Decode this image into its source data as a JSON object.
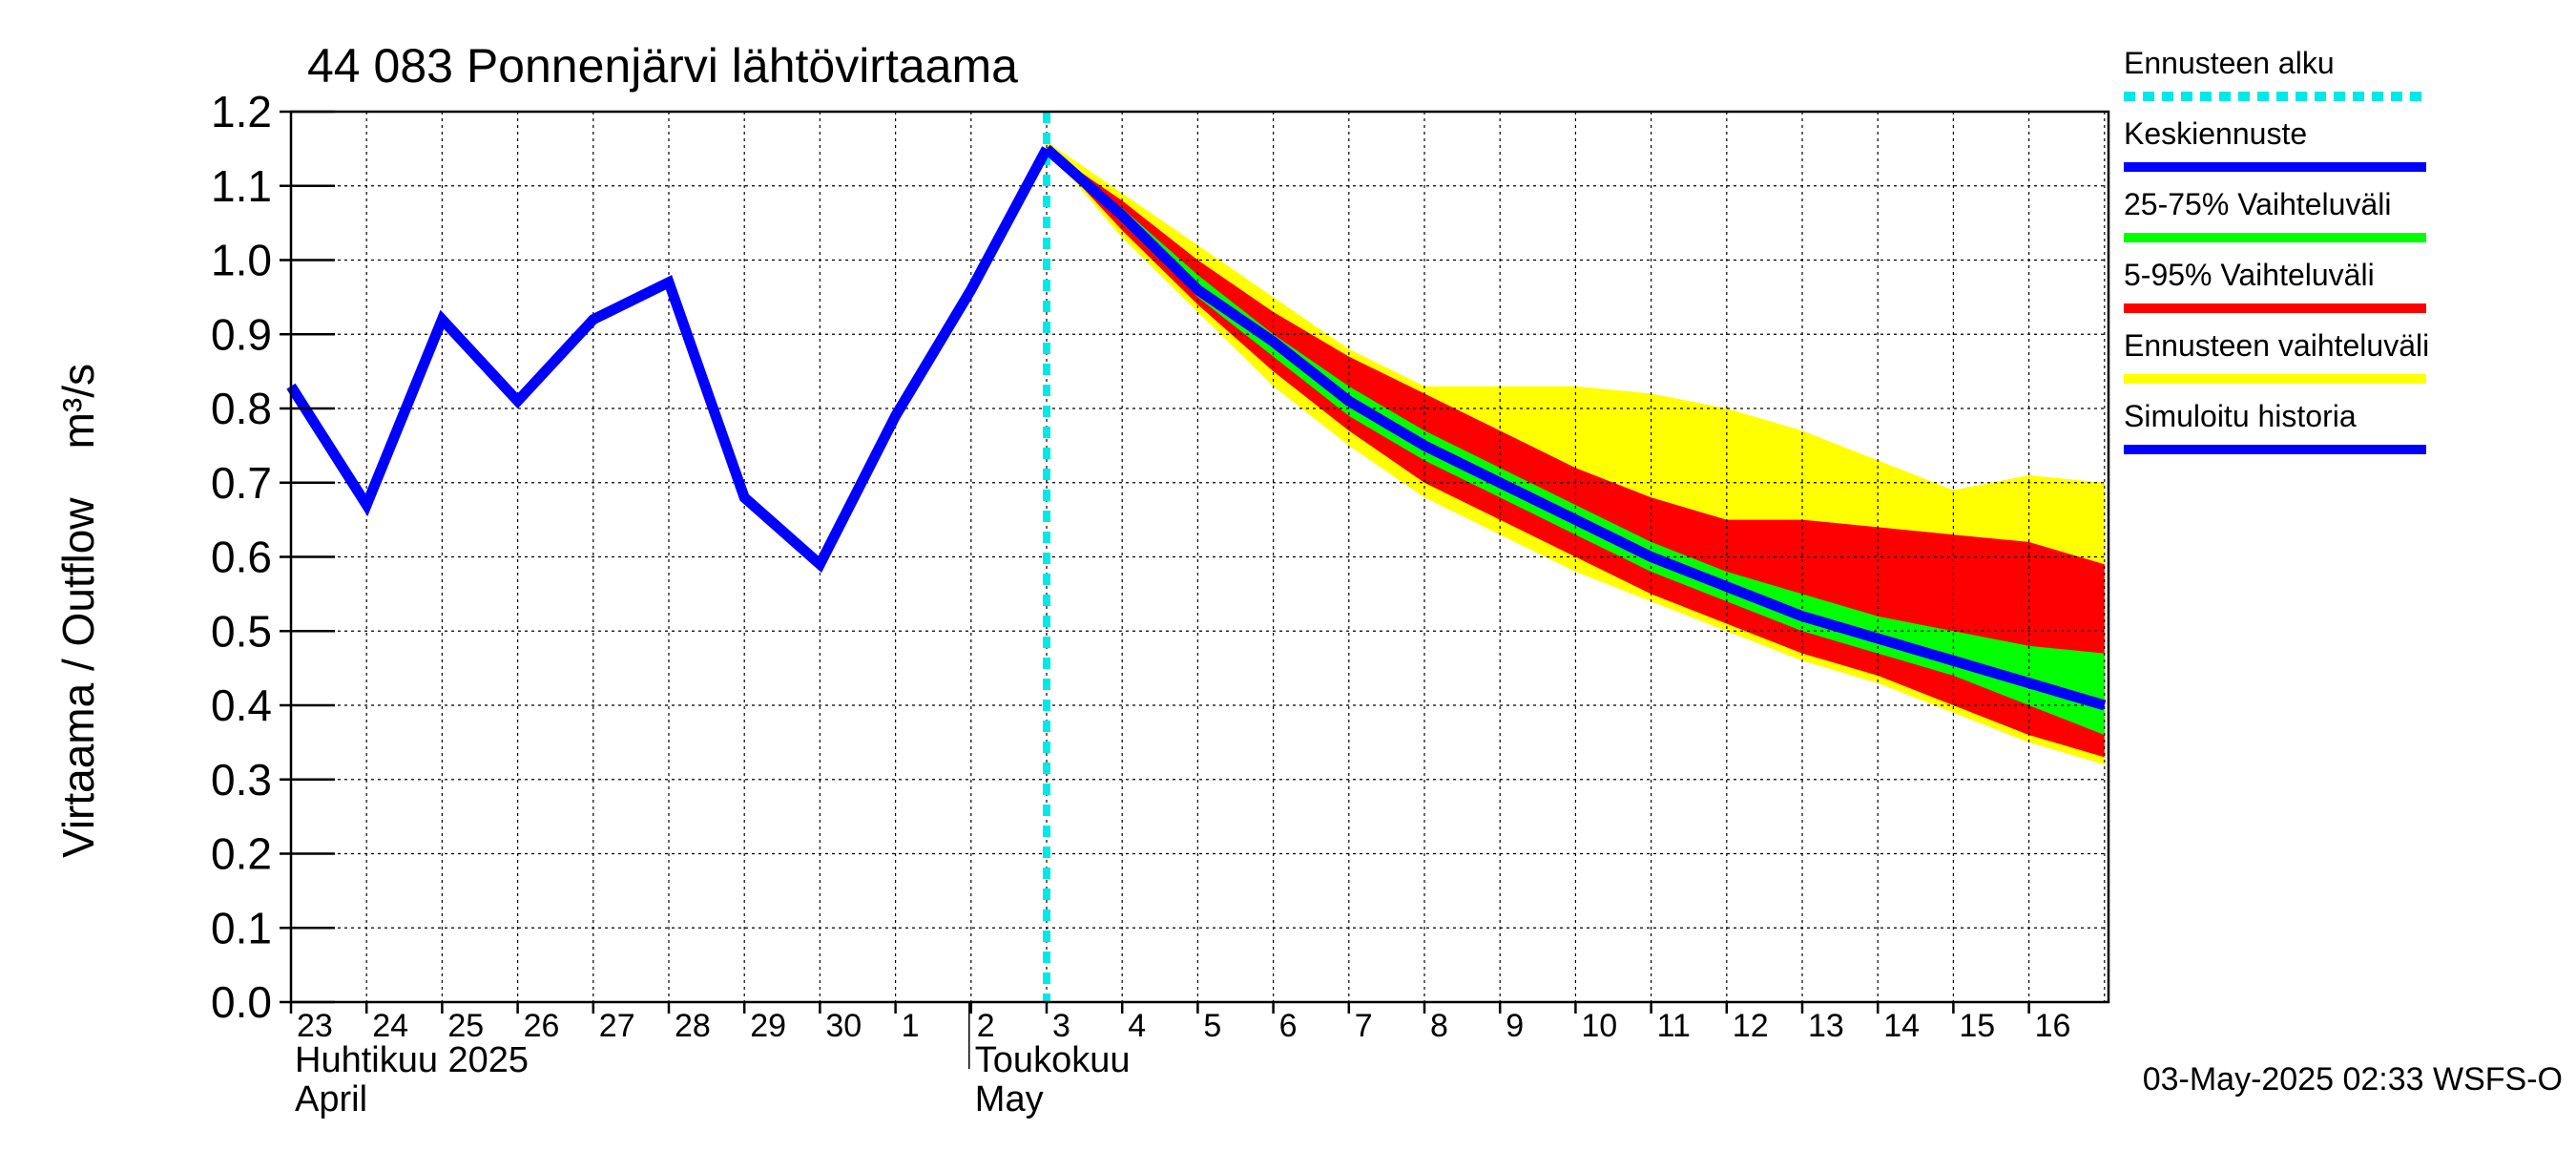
{
  "chart_data": {
    "type": "area",
    "title": "44 083 Ponnenjärvi lähtövirtaama",
    "ylabel": "Virtaama / Outflow    m³/s",
    "ylim": [
      0,
      1.2
    ],
    "yticks": [
      "0.0",
      "0.1",
      "0.2",
      "0.3",
      "0.4",
      "0.5",
      "0.6",
      "0.7",
      "0.8",
      "0.9",
      "1.0",
      "1.1",
      "1.2"
    ],
    "xlim_days": [
      "2025-04-23",
      "2025-05-17"
    ],
    "day_labels": [
      "23",
      "24",
      "25",
      "26",
      "27",
      "28",
      "29",
      "30",
      "1",
      "2",
      "3",
      "4",
      "5",
      "6",
      "7",
      "8",
      "9",
      "10",
      "11",
      "12",
      "13",
      "14",
      "15",
      "16"
    ],
    "month_labels": [
      {
        "line1": "Huhtikuu  2025",
        "line2": "April",
        "start": "2025-04-23"
      },
      {
        "line1": "Toukokuu",
        "line2": "May",
        "start": "2025-05-02"
      }
    ],
    "forecast_start": "2025-05-03",
    "x": [
      "2025-04-23",
      "2025-04-24",
      "2025-04-25",
      "2025-04-26",
      "2025-04-27",
      "2025-04-28",
      "2025-04-29",
      "2025-04-30",
      "2025-05-01",
      "2025-05-02",
      "2025-05-03",
      "2025-05-04",
      "2025-05-05",
      "2025-05-06",
      "2025-05-07",
      "2025-05-08",
      "2025-05-09",
      "2025-05-10",
      "2025-05-11",
      "2025-05-12",
      "2025-05-13",
      "2025-05-14",
      "2025-05-15",
      "2025-05-16",
      "2025-05-17"
    ],
    "series": [
      {
        "name": "Simuloitu historia",
        "color": "#0000ff",
        "values": [
          0.83,
          0.67,
          0.92,
          0.81,
          0.92,
          0.97,
          0.68,
          0.59,
          0.79,
          0.96,
          1.15,
          null,
          null,
          null,
          null,
          null,
          null,
          null,
          null,
          null,
          null,
          null,
          null,
          null,
          null
        ]
      },
      {
        "name": "Keskiennuste",
        "color": "#0000ff",
        "values": [
          null,
          null,
          null,
          null,
          null,
          null,
          null,
          null,
          null,
          null,
          1.15,
          1.06,
          0.96,
          0.89,
          0.81,
          0.75,
          0.7,
          0.65,
          0.6,
          0.56,
          0.52,
          0.49,
          0.46,
          0.43,
          0.4
        ]
      },
      {
        "name": "25-75% Vaihteluväli",
        "color": "#00ff00",
        "lower": [
          null,
          null,
          null,
          null,
          null,
          null,
          null,
          null,
          null,
          null,
          1.15,
          1.05,
          0.95,
          0.87,
          0.79,
          0.73,
          0.68,
          0.63,
          0.58,
          0.54,
          0.5,
          0.47,
          0.44,
          0.4,
          0.36
        ],
        "upper": [
          null,
          null,
          null,
          null,
          null,
          null,
          null,
          null,
          null,
          null,
          1.15,
          1.07,
          0.98,
          0.9,
          0.83,
          0.77,
          0.72,
          0.67,
          0.62,
          0.58,
          0.55,
          0.52,
          0.5,
          0.48,
          0.47
        ]
      },
      {
        "name": "5-95% Vaihteluväli",
        "color": "#ff0000",
        "lower": [
          null,
          null,
          null,
          null,
          null,
          null,
          null,
          null,
          null,
          null,
          1.15,
          1.04,
          0.94,
          0.85,
          0.77,
          0.7,
          0.65,
          0.6,
          0.55,
          0.51,
          0.47,
          0.44,
          0.4,
          0.36,
          0.33
        ],
        "upper": [
          null,
          null,
          null,
          null,
          null,
          null,
          null,
          null,
          null,
          null,
          1.15,
          1.08,
          1.0,
          0.93,
          0.87,
          0.82,
          0.77,
          0.72,
          0.68,
          0.65,
          0.65,
          0.64,
          0.63,
          0.62,
          0.59
        ]
      },
      {
        "name": "Ennusteen vaihteluväli",
        "color": "#ffff00",
        "lower": [
          null,
          null,
          null,
          null,
          null,
          null,
          null,
          null,
          null,
          null,
          1.15,
          1.03,
          0.93,
          0.83,
          0.75,
          0.68,
          0.63,
          0.58,
          0.54,
          0.5,
          0.46,
          0.43,
          0.39,
          0.35,
          0.32
        ],
        "upper": [
          null,
          null,
          null,
          null,
          null,
          null,
          null,
          null,
          null,
          null,
          1.16,
          1.09,
          1.02,
          0.95,
          0.88,
          0.83,
          0.83,
          0.83,
          0.82,
          0.8,
          0.77,
          0.73,
          0.69,
          0.71,
          0.7
        ]
      }
    ],
    "legend": [
      {
        "label": "Ennusteen alku",
        "color": "#00e8e8",
        "style": "dotted"
      },
      {
        "label": "Keskiennuste",
        "color": "#0000ff",
        "style": "solid"
      },
      {
        "label": "25-75% Vaihteluväli",
        "color": "#00ff00",
        "style": "solid"
      },
      {
        "label": "5-95% Vaihteluväli",
        "color": "#ff0000",
        "style": "solid"
      },
      {
        "label": "Ennusteen vaihteluväli",
        "color": "#ffff00",
        "style": "solid"
      },
      {
        "label": "Simuloitu historia",
        "color": "#0000ff",
        "style": "solid"
      }
    ],
    "legend_position": "right",
    "grid": true,
    "footer": "03-May-2025 02:33 WSFS-O"
  }
}
